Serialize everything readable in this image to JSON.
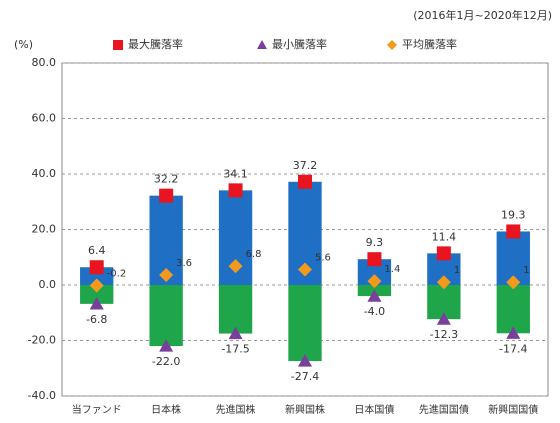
{
  "chart_data": {
    "type": "range_bar",
    "subtitle": "(2016年1月~2020年12月)",
    "y_label": "(%)",
    "categories": [
      "当ファンド",
      "日本株",
      "先進国株",
      "新興国株",
      "日本国債",
      "先進国国債",
      "新興国国債"
    ],
    "series": [
      {
        "name": "最大騰落率",
        "color": "#e8141f",
        "marker": "square",
        "values": [
          6.4,
          32.2,
          34.1,
          37.2,
          9.3,
          11.4,
          19.3
        ]
      },
      {
        "name": "最小騰落率",
        "color": "#7a3f9a",
        "marker": "triangle",
        "values": [
          -6.8,
          -22.0,
          -17.5,
          -27.4,
          -4.0,
          -12.3,
          -17.4
        ],
        "value_labels": [
          "-6.8",
          "-22.0",
          "-17.5",
          "-27.4",
          "-4.0",
          "-12.3",
          "-17.4"
        ]
      },
      {
        "name": "平均騰落率",
        "color": "#f39a1c",
        "marker": "diamond",
        "values": [
          -0.2,
          3.6,
          6.8,
          5.6,
          1.4,
          1.0,
          1.0
        ]
      }
    ],
    "positive_color": "#1f6fc5",
    "negative_color": "#1fa64a",
    "ylim": [
      -40,
      80
    ],
    "yticks": [
      {
        "value": -40,
        "label": "-40.0"
      },
      {
        "value": -20,
        "label": "-20.0"
      },
      {
        "value": 0,
        "label": "0.0"
      },
      {
        "value": 20,
        "label": "20.0"
      },
      {
        "value": 40,
        "label": "40.0"
      },
      {
        "value": 60,
        "label": "60.0"
      },
      {
        "value": 80,
        "label": "80.0"
      }
    ],
    "grid": true
  }
}
